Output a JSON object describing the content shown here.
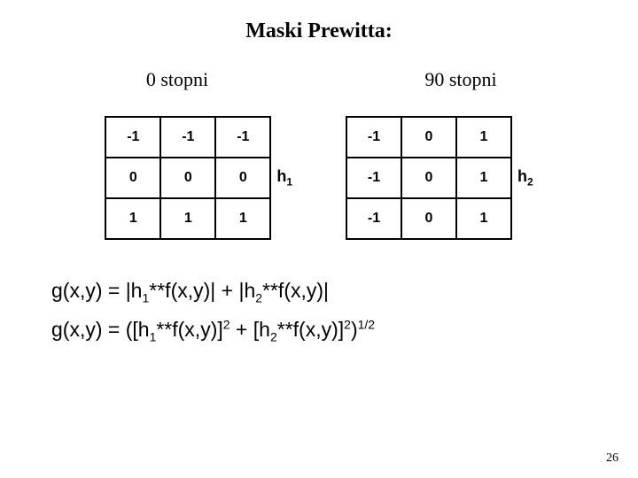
{
  "title": "Maski Prewitta:",
  "subtitles": {
    "left": "0 stopni",
    "right": "90 stopni"
  },
  "matrix1": {
    "rows": [
      [
        "-1",
        "-1",
        "-1"
      ],
      [
        "0",
        "0",
        "0"
      ],
      [
        "1",
        "1",
        "1"
      ]
    ],
    "label": "h",
    "label_sub": "1"
  },
  "matrix2": {
    "rows": [
      [
        "-1",
        "0",
        "1"
      ],
      [
        "-1",
        "0",
        "1"
      ],
      [
        "-1",
        "0",
        "1"
      ]
    ],
    "label": "h",
    "label_sub": "2"
  },
  "formulas": {
    "f1": {
      "pre": "g(x,y) = |h",
      "s1": "1",
      "mid1": "**f(x,y)| + |h",
      "s2": "2",
      "post": "**f(x,y)|"
    },
    "f2": {
      "pre": "g(x,y) = ([h",
      "s1": "1",
      "mid1": "**f(x,y)]",
      "e1": "2",
      "mid2": " + [h",
      "s2": "2",
      "mid3": "**f(x,y)]",
      "e2": "2",
      "mid4": ")",
      "e3": "1/2"
    }
  },
  "page_number": "26"
}
